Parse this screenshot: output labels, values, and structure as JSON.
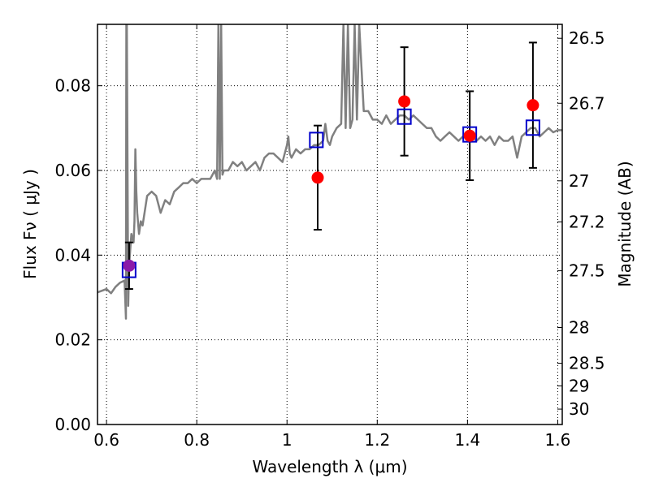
{
  "chart_data": {
    "type": "scatter",
    "xlabel": "Wavelength  λ (μm)",
    "ylabel": "Flux  Fν  ( μJy )",
    "ylabel_right": "Magnitude (AB)",
    "xlim": [
      0.58,
      1.61
    ],
    "ylim": [
      0.0,
      0.0945
    ],
    "grid": true,
    "x_ticks": [
      0.6,
      0.8,
      1.0,
      1.2,
      1.4,
      1.6
    ],
    "x_tick_labels": [
      "0.6",
      "0.8",
      "1",
      "1.2",
      "1.4",
      "1.6"
    ],
    "y_ticks": [
      0.0,
      0.02,
      0.04,
      0.06,
      0.08
    ],
    "y_tick_labels": [
      "0.00",
      "0.02",
      "0.04",
      "0.06",
      "0.08"
    ],
    "mag_ticks": [
      26.5,
      26.7,
      27,
      27.2,
      27.5,
      28,
      28.5,
      29,
      30
    ],
    "mag_tick_labels": [
      "26.5",
      "26.7",
      "27",
      "27.2",
      "27.5",
      "28",
      "28.5",
      "29",
      "30"
    ],
    "colors": {
      "model": "#808080",
      "observed": "#ff0000",
      "synthetic": "#0000cc",
      "overlap": "#8a1aa8"
    },
    "series": [
      {
        "kind": "line",
        "x": [
          0.58,
          0.6,
          0.61,
          0.62,
          0.63,
          0.64,
          0.643,
          0.644,
          0.645,
          0.648,
          0.65,
          0.655,
          0.66,
          0.662,
          0.664,
          0.666,
          0.668,
          0.672,
          0.676,
          0.68,
          0.69,
          0.7,
          0.71,
          0.72,
          0.73,
          0.74,
          0.75,
          0.76,
          0.77,
          0.78,
          0.79,
          0.8,
          0.81,
          0.82,
          0.83,
          0.84,
          0.845,
          0.848,
          0.851,
          0.854,
          0.857,
          0.86,
          0.87,
          0.88,
          0.89,
          0.9,
          0.91,
          0.92,
          0.93,
          0.94,
          0.95,
          0.96,
          0.97,
          0.98,
          0.99,
          1.0,
          1.003,
          1.006,
          1.01,
          1.02,
          1.03,
          1.04,
          1.05,
          1.06,
          1.07,
          1.08,
          1.085,
          1.09,
          1.095,
          1.1,
          1.11,
          1.12,
          1.125,
          1.13,
          1.135,
          1.14,
          1.145,
          1.15,
          1.155,
          1.16,
          1.17,
          1.18,
          1.19,
          1.2,
          1.21,
          1.22,
          1.23,
          1.24,
          1.25,
          1.26,
          1.27,
          1.28,
          1.29,
          1.3,
          1.31,
          1.32,
          1.33,
          1.34,
          1.35,
          1.36,
          1.37,
          1.38,
          1.39,
          1.4,
          1.41,
          1.42,
          1.43,
          1.44,
          1.45,
          1.46,
          1.47,
          1.48,
          1.49,
          1.5,
          1.51,
          1.52,
          1.53,
          1.54,
          1.55,
          1.56,
          1.57,
          1.58,
          1.59,
          1.6,
          1.61
        ],
        "y": [
          0.0312,
          0.032,
          0.031,
          0.0325,
          0.0335,
          0.034,
          0.025,
          0.0945,
          0.0945,
          0.028,
          0.0375,
          0.045,
          0.043,
          0.048,
          0.065,
          0.055,
          0.05,
          0.045,
          0.048,
          0.047,
          0.054,
          0.055,
          0.054,
          0.05,
          0.053,
          0.052,
          0.055,
          0.056,
          0.057,
          0.057,
          0.058,
          0.057,
          0.058,
          0.058,
          0.058,
          0.06,
          0.058,
          0.0945,
          0.058,
          0.0945,
          0.059,
          0.06,
          0.06,
          0.062,
          0.061,
          0.062,
          0.06,
          0.061,
          0.062,
          0.06,
          0.063,
          0.064,
          0.064,
          0.063,
          0.062,
          0.066,
          0.068,
          0.064,
          0.063,
          0.065,
          0.064,
          0.065,
          0.065,
          0.066,
          0.066,
          0.067,
          0.071,
          0.067,
          0.066,
          0.068,
          0.07,
          0.071,
          0.0945,
          0.07,
          0.0945,
          0.07,
          0.072,
          0.0945,
          0.072,
          0.0945,
          0.074,
          0.074,
          0.072,
          0.072,
          0.071,
          0.073,
          0.071,
          0.072,
          0.073,
          0.073,
          0.072,
          0.073,
          0.072,
          0.071,
          0.07,
          0.07,
          0.068,
          0.067,
          0.068,
          0.069,
          0.068,
          0.067,
          0.068,
          0.069,
          0.068,
          0.067,
          0.068,
          0.067,
          0.068,
          0.066,
          0.068,
          0.067,
          0.067,
          0.068,
          0.063,
          0.068,
          0.069,
          0.07,
          0.07,
          0.068,
          0.069,
          0.07,
          0.069,
          0.0695,
          0.0695
        ]
      },
      {
        "kind": "points",
        "marker": "circle",
        "x": [
          0.65,
          1.068,
          1.26,
          1.405,
          1.545
        ],
        "y": [
          0.0375,
          0.0583,
          0.0763,
          0.0682,
          0.0754
        ],
        "yerr": [
          0.0055,
          0.0123,
          0.0128,
          0.0105,
          0.0148
        ]
      },
      {
        "kind": "points",
        "marker": "square",
        "x": [
          0.65,
          1.065,
          1.26,
          1.405,
          1.545
        ],
        "y": [
          0.0365,
          0.0672,
          0.0727,
          0.0685,
          0.0701
        ]
      }
    ]
  }
}
